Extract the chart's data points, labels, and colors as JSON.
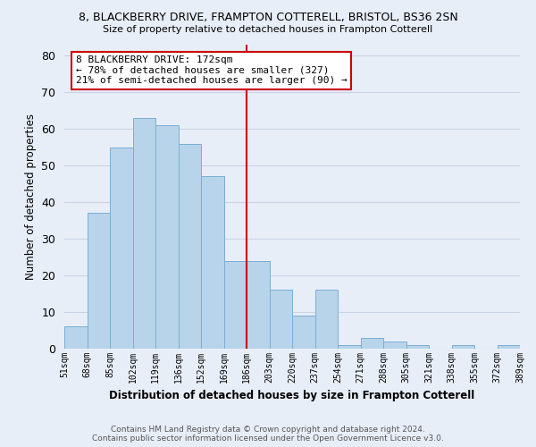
{
  "title": "8, BLACKBERRY DRIVE, FRAMPTON COTTERELL, BRISTOL, BS36 2SN",
  "subtitle": "Size of property relative to detached houses in Frampton Cotterell",
  "xlabel": "Distribution of detached houses by size in Frampton Cotterell",
  "ylabel": "Number of detached properties",
  "bar_labels": [
    "51sqm",
    "68sqm",
    "85sqm",
    "102sqm",
    "119sqm",
    "136sqm",
    "152sqm",
    "169sqm",
    "186sqm",
    "203sqm",
    "220sqm",
    "237sqm",
    "254sqm",
    "271sqm",
    "288sqm",
    "305sqm",
    "321sqm",
    "338sqm",
    "355sqm",
    "372sqm",
    "389sqm"
  ],
  "bar_values": [
    6,
    37,
    55,
    63,
    61,
    56,
    47,
    24,
    24,
    16,
    9,
    16,
    1,
    3,
    2,
    1,
    0,
    1,
    0,
    1
  ],
  "bar_color": "#b8d4ea",
  "bar_edge_color": "#7aaed4",
  "vline_color": "#cc0000",
  "annotation_line1": "8 BLACKBERRY DRIVE: 172sqm",
  "annotation_line2": "← 78% of detached houses are smaller (327)",
  "annotation_line3": "21% of semi-detached houses are larger (90) →",
  "annotation_box_color": "#ffffff",
  "annotation_box_edge": "#cc0000",
  "ylim": [
    0,
    83
  ],
  "yticks": [
    0,
    10,
    20,
    30,
    40,
    50,
    60,
    70,
    80
  ],
  "grid_color": "#c8d4e4",
  "background_color": "#e8eef8",
  "footer_line1": "Contains HM Land Registry data © Crown copyright and database right 2024.",
  "footer_line2": "Contains public sector information licensed under the Open Government Licence v3.0."
}
